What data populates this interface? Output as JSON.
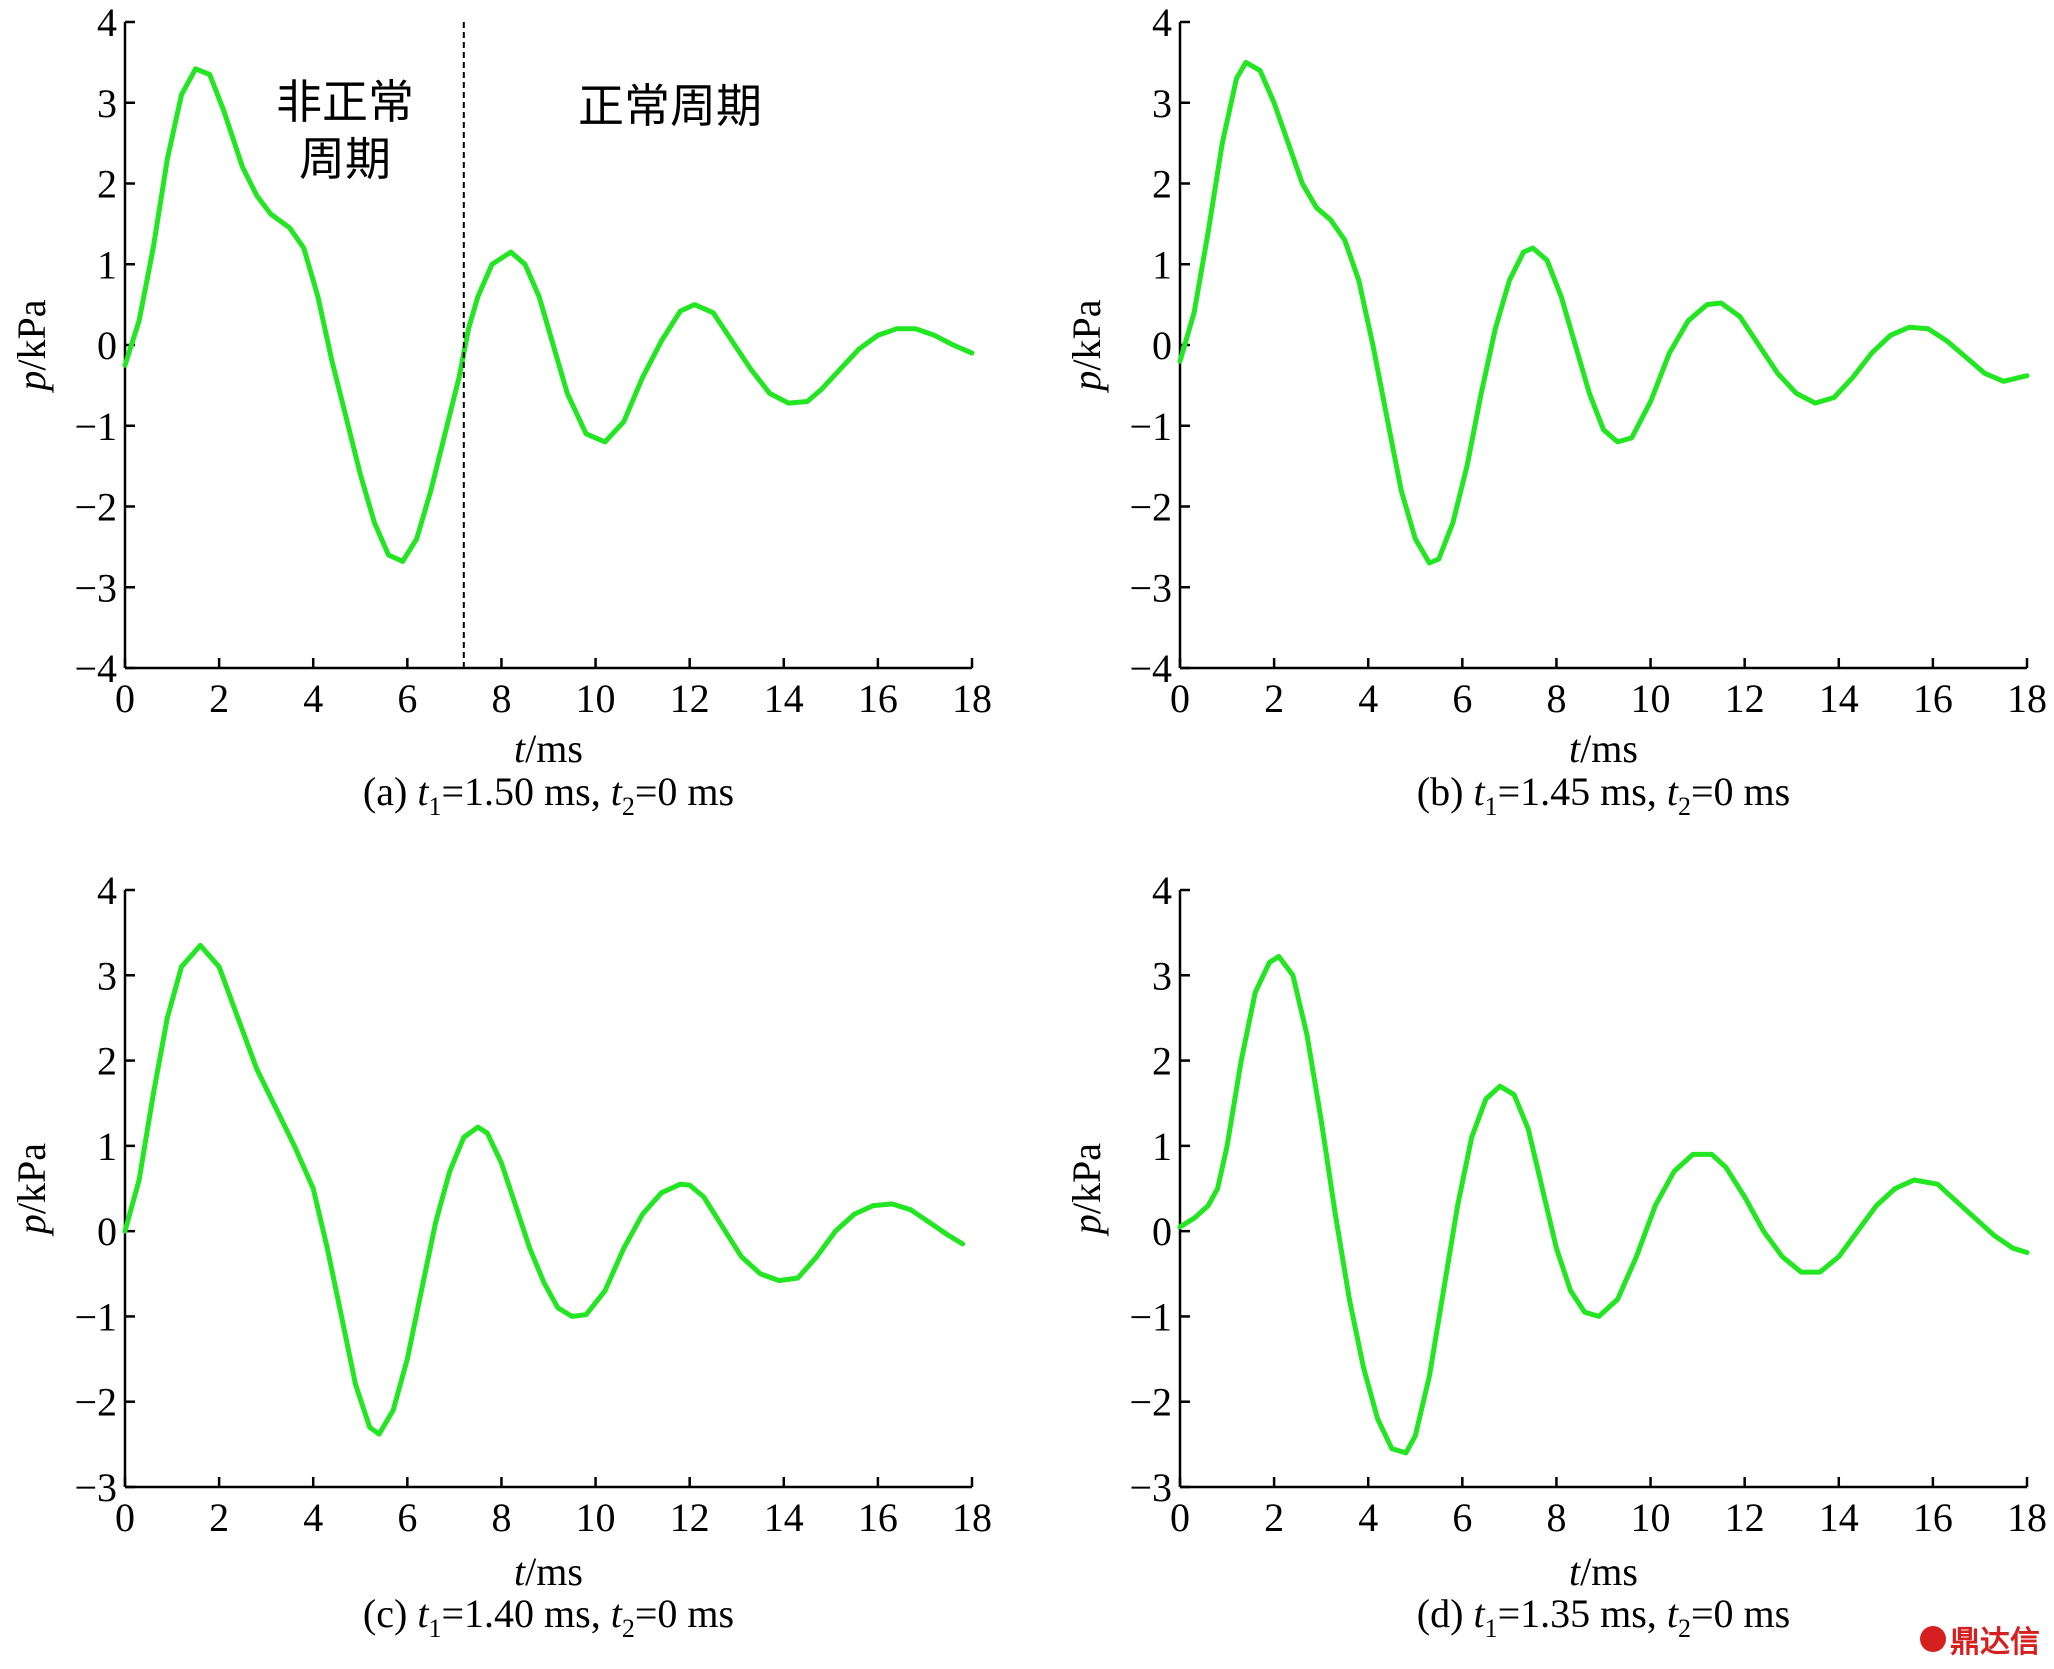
{
  "watermark": "鼎达信",
  "chart_data": [
    {
      "type": "line",
      "panel": "a",
      "caption": {
        "prefix": "(a) ",
        "t1_value": "=1.50 ms",
        "sep": ",",
        "t2_value": "=0 ms"
      },
      "xlabel": "t/ms",
      "ylabel": "p/kPa",
      "xlim": [
        0,
        18
      ],
      "ylim": [
        -4,
        4
      ],
      "xticks": [
        0,
        2,
        4,
        6,
        8,
        10,
        12,
        14,
        16,
        18
      ],
      "yticks": [
        -4,
        -3,
        -2,
        -1,
        0,
        1,
        2,
        3,
        4
      ],
      "annotations": {
        "left": [
          "非正常",
          "周期"
        ],
        "right": "正常周期",
        "divider_x": 7.2
      },
      "x": [
        0,
        0.3,
        0.6,
        0.9,
        1.2,
        1.5,
        1.8,
        2.1,
        2.5,
        2.8,
        3.1,
        3.5,
        3.8,
        4.1,
        4.4,
        4.7,
        5,
        5.3,
        5.6,
        5.9,
        6.2,
        6.5,
        6.8,
        7.1,
        7.3,
        7.5,
        7.8,
        8.2,
        8.5,
        8.8,
        9.1,
        9.4,
        9.8,
        10.2,
        10.6,
        11,
        11.4,
        11.8,
        12.1,
        12.5,
        12.9,
        13.3,
        13.7,
        14.1,
        14.5,
        14.8,
        15.2,
        15.6,
        16,
        16.4,
        16.8,
        17.2,
        17.6,
        18
      ],
      "values": [
        -0.25,
        0.3,
        1.2,
        2.3,
        3.1,
        3.42,
        3.35,
        2.9,
        2.2,
        1.85,
        1.62,
        1.45,
        1.2,
        0.6,
        -0.2,
        -0.9,
        -1.6,
        -2.2,
        -2.6,
        -2.68,
        -2.4,
        -1.8,
        -1.1,
        -0.4,
        0.2,
        0.6,
        1.0,
        1.15,
        1.0,
        0.6,
        0.0,
        -0.6,
        -1.1,
        -1.2,
        -0.95,
        -0.4,
        0.05,
        0.42,
        0.5,
        0.4,
        0.05,
        -0.3,
        -0.6,
        -0.72,
        -0.7,
        -0.55,
        -0.3,
        -0.05,
        0.12,
        0.2,
        0.2,
        0.12,
        0.0,
        -0.1
      ]
    },
    {
      "type": "line",
      "panel": "b",
      "caption": {
        "prefix": "(b) ",
        "t1_value": "=1.45 ms",
        "sep": ",",
        "t2_value": "=0 ms"
      },
      "xlabel": "t/ms",
      "ylabel": "p/kPa",
      "xlim": [
        0,
        18
      ],
      "ylim": [
        -4,
        4
      ],
      "xticks": [
        0,
        2,
        4,
        6,
        8,
        10,
        12,
        14,
        16,
        18
      ],
      "yticks": [
        -4,
        -3,
        -2,
        -1,
        0,
        1,
        2,
        3,
        4
      ],
      "x": [
        0,
        0.3,
        0.6,
        0.9,
        1.2,
        1.4,
        1.7,
        2,
        2.3,
        2.6,
        2.9,
        3.2,
        3.5,
        3.8,
        4.1,
        4.4,
        4.7,
        5,
        5.3,
        5.5,
        5.8,
        6.1,
        6.4,
        6.7,
        7,
        7.3,
        7.5,
        7.8,
        8.1,
        8.4,
        8.7,
        9,
        9.3,
        9.6,
        10,
        10.4,
        10.8,
        11.2,
        11.5,
        11.9,
        12.3,
        12.7,
        13.1,
        13.5,
        13.9,
        14.3,
        14.7,
        15.1,
        15.5,
        15.9,
        16.3,
        16.7,
        17.1,
        17.5,
        18
      ],
      "values": [
        -0.2,
        0.4,
        1.4,
        2.5,
        3.3,
        3.5,
        3.4,
        3.0,
        2.5,
        2.0,
        1.7,
        1.55,
        1.3,
        0.8,
        0.0,
        -0.9,
        -1.8,
        -2.4,
        -2.7,
        -2.65,
        -2.2,
        -1.5,
        -0.6,
        0.2,
        0.8,
        1.15,
        1.2,
        1.05,
        0.6,
        0.0,
        -0.6,
        -1.05,
        -1.2,
        -1.15,
        -0.7,
        -0.1,
        0.3,
        0.5,
        0.52,
        0.35,
        0.0,
        -0.35,
        -0.6,
        -0.72,
        -0.65,
        -0.4,
        -0.1,
        0.12,
        0.22,
        0.2,
        0.05,
        -0.15,
        -0.35,
        -0.45,
        -0.38
      ]
    },
    {
      "type": "line",
      "panel": "c",
      "caption": {
        "prefix": "(c) ",
        "t1_value": "=1.40 ms",
        "sep": ",",
        "t2_value": "=0 ms"
      },
      "xlabel": "t/ms",
      "ylabel": "p/kPa",
      "xlim": [
        0,
        18
      ],
      "ylim": [
        -3,
        4
      ],
      "xticks": [
        0,
        2,
        4,
        6,
        8,
        10,
        12,
        14,
        16,
        18
      ],
      "yticks": [
        -3,
        -2,
        -1,
        0,
        1,
        2,
        3,
        4
      ],
      "x": [
        0,
        0.3,
        0.6,
        0.9,
        1.2,
        1.6,
        2,
        2.4,
        2.8,
        3.2,
        3.6,
        4,
        4.3,
        4.6,
        4.9,
        5.2,
        5.4,
        5.7,
        6,
        6.3,
        6.6,
        6.9,
        7.2,
        7.5,
        7.7,
        8,
        8.3,
        8.6,
        8.9,
        9.2,
        9.5,
        9.8,
        10.2,
        10.6,
        11,
        11.4,
        11.8,
        12,
        12.3,
        12.7,
        13.1,
        13.5,
        13.9,
        14.3,
        14.7,
        15.1,
        15.5,
        15.9,
        16.3,
        16.7,
        17.1,
        17.5,
        17.8
      ],
      "values": [
        0.0,
        0.6,
        1.6,
        2.5,
        3.1,
        3.35,
        3.1,
        2.5,
        1.9,
        1.45,
        1.0,
        0.5,
        -0.2,
        -1.0,
        -1.8,
        -2.3,
        -2.38,
        -2.1,
        -1.5,
        -0.7,
        0.1,
        0.7,
        1.1,
        1.22,
        1.15,
        0.8,
        0.3,
        -0.2,
        -0.6,
        -0.9,
        -1.0,
        -0.98,
        -0.7,
        -0.2,
        0.2,
        0.45,
        0.55,
        0.54,
        0.4,
        0.05,
        -0.3,
        -0.5,
        -0.58,
        -0.55,
        -0.3,
        0.0,
        0.2,
        0.3,
        0.32,
        0.25,
        0.1,
        -0.05,
        -0.15
      ]
    },
    {
      "type": "line",
      "panel": "d",
      "caption": {
        "prefix": "(d) ",
        "t1_value": "=1.35 ms",
        "sep": ",",
        "t2_value": "=0 ms"
      },
      "xlabel": "t/ms",
      "ylabel": "p/kPa",
      "xlim": [
        0,
        18
      ],
      "ylim": [
        -3,
        4
      ],
      "xticks": [
        0,
        2,
        4,
        6,
        8,
        10,
        12,
        14,
        16,
        18
      ],
      "yticks": [
        -3,
        -2,
        -1,
        0,
        1,
        2,
        3,
        4
      ],
      "x": [
        0,
        0.3,
        0.6,
        0.8,
        1,
        1.3,
        1.6,
        1.9,
        2.1,
        2.4,
        2.7,
        3,
        3.3,
        3.6,
        3.9,
        4.2,
        4.5,
        4.8,
        5,
        5.3,
        5.6,
        5.9,
        6.2,
        6.5,
        6.8,
        7.1,
        7.4,
        7.7,
        8,
        8.3,
        8.6,
        8.9,
        9.3,
        9.7,
        10.1,
        10.5,
        10.9,
        11.3,
        11.6,
        12,
        12.4,
        12.8,
        13.2,
        13.6,
        14,
        14.4,
        14.8,
        15.2,
        15.6,
        16.1,
        16.5,
        16.9,
        17.3,
        17.7,
        18
      ],
      "values": [
        0.05,
        0.15,
        0.3,
        0.5,
        1.0,
        2.0,
        2.8,
        3.15,
        3.22,
        3.0,
        2.3,
        1.3,
        0.2,
        -0.8,
        -1.6,
        -2.2,
        -2.55,
        -2.6,
        -2.4,
        -1.7,
        -0.7,
        0.3,
        1.1,
        1.55,
        1.7,
        1.6,
        1.2,
        0.5,
        -0.2,
        -0.7,
        -0.95,
        -1.0,
        -0.8,
        -0.3,
        0.3,
        0.7,
        0.9,
        0.9,
        0.75,
        0.4,
        0.0,
        -0.3,
        -0.48,
        -0.48,
        -0.3,
        0.0,
        0.3,
        0.5,
        0.6,
        0.55,
        0.35,
        0.15,
        -0.05,
        -0.2,
        -0.25
      ]
    }
  ]
}
